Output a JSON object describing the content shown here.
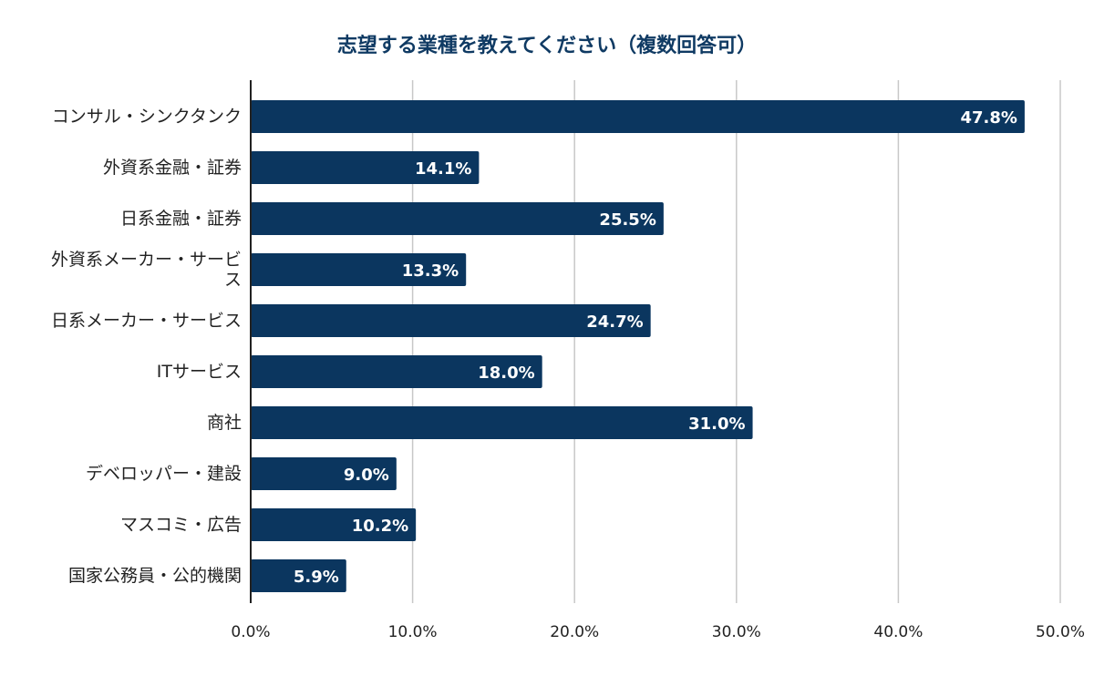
{
  "chart_data": {
    "type": "bar",
    "orientation": "horizontal",
    "title": "志望する業種を教えてください（複数回答可）",
    "categories": [
      "コンサル・シンクタンク",
      "外資系金融・証券",
      "日系金融・証券",
      "外資系メーカー・サービス",
      "日系メーカー・サービス",
      "ITサービス",
      "商社",
      "デベロッパー・建設",
      "マスコミ・広告",
      "国家公務員・公的機関"
    ],
    "values": [
      47.8,
      14.1,
      25.5,
      13.3,
      24.7,
      18.0,
      31.0,
      9.0,
      10.2,
      5.9
    ],
    "data_labels": [
      "47.8%",
      "14.1%",
      "25.5%",
      "13.3%",
      "24.7%",
      "18.0%",
      "31.0%",
      "9.0%",
      "10.2%",
      "5.9%"
    ],
    "xlim": [
      0,
      50
    ],
    "x_ticks": [
      "0.0%",
      "10.0%",
      "20.0%",
      "30.0%",
      "40.0%",
      "50.0%"
    ],
    "xlabel": "",
    "ylabel": "",
    "grid": "vertical",
    "legend": "none",
    "bar_color": "#0b365f",
    "title_color": "#0f3a63"
  }
}
